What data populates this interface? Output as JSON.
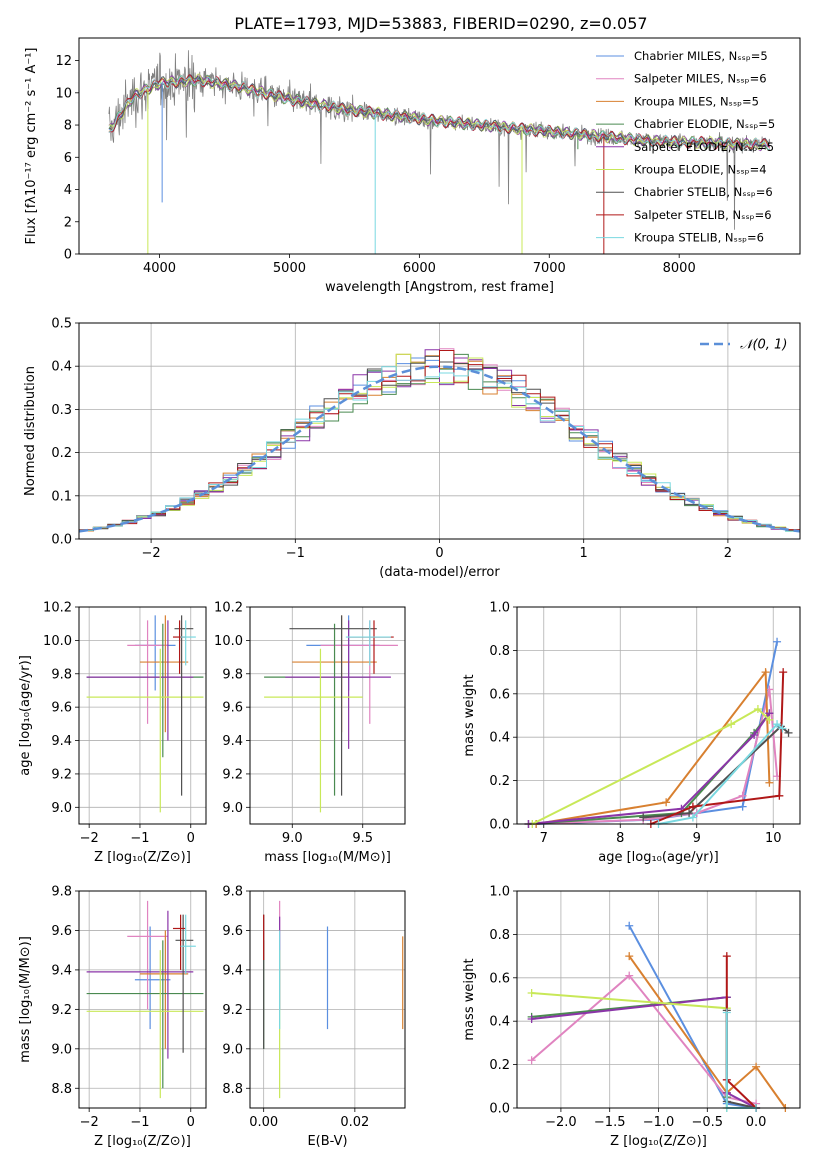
{
  "colors": {
    "cm": "#5b8fe0",
    "sm": "#e084c0",
    "km": "#d88030",
    "ce": "#4a8a50",
    "se": "#8b35a8",
    "ke": "#c8e858",
    "cs": "#505050",
    "ss": "#b01818",
    "ks": "#7ad8e0"
  },
  "chart_data": [
    {
      "id": "spectrum",
      "type": "line",
      "title": "PLATE=1793, MJD=53883, FIBERID=0290, z=0.057",
      "xlabel": "wavelength [Angstrom, rest frame]",
      "ylabel": "Flux [fλ10⁻¹⁷ erg cm⁻² s⁻¹ A⁻¹]",
      "xlim": [
        3380,
        8930
      ],
      "ylim": [
        0,
        13.4
      ],
      "xticks": [
        4000,
        5000,
        6000,
        7000,
        8000
      ],
      "yticks": [
        0,
        2,
        4,
        6,
        8,
        10,
        12
      ],
      "continuum": {
        "x": [
          3600,
          3800,
          4000,
          4300,
          4600,
          5000,
          5400,
          5800,
          6200,
          6600,
          7000,
          7400,
          7800,
          8200,
          8500,
          8700
        ],
        "y": [
          7.5,
          9.8,
          10.6,
          10.8,
          10.4,
          9.6,
          9.0,
          8.6,
          8.2,
          7.9,
          7.6,
          7.3,
          7.0,
          6.9,
          6.8,
          6.8
        ]
      },
      "legend": [
        {
          "name": "Chabrier MILES, Nₛₛₚ=5",
          "color": "cm"
        },
        {
          "name": "Salpeter MILES, Nₛₛₚ=6",
          "color": "sm"
        },
        {
          "name": "Kroupa MILES, Nₛₛₚ=5",
          "color": "km"
        },
        {
          "name": "Chabrier ELODIE, Nₛₛₚ=5",
          "color": "ce"
        },
        {
          "name": "Salpeter ELODIE, Nₛₛₚ=5",
          "color": "se"
        },
        {
          "name": "Kroupa ELODIE, Nₛₛₚ=4",
          "color": "ke"
        },
        {
          "name": "Chabrier STELIB, Nₛₛₚ=6",
          "color": "cs"
        },
        {
          "name": "Salpeter STELIB, Nₛₛₚ=6",
          "color": "ss"
        },
        {
          "name": "Kroupa STELIB, Nₛₛₚ=6",
          "color": "ks"
        }
      ]
    },
    {
      "id": "histogram",
      "type": "line",
      "xlabel": "(data-model)/error",
      "ylabel": "Normed distribution",
      "xlim": [
        -2.5,
        2.5
      ],
      "ylim": [
        0,
        0.5
      ],
      "xticks": [
        -2,
        -1,
        0,
        1,
        2
      ],
      "yticks": [
        0.0,
        0.1,
        0.2,
        0.3,
        0.4,
        0.5
      ],
      "gaussian_legend": "𝒩(0, 1)",
      "bin_width": 0.1
    },
    {
      "id": "age_vs_Z",
      "type": "scatter",
      "xlabel": "Z [log₁₀(Z/Z⊙)]",
      "ylabel": "age  [log₁₀(age/yr)]",
      "xlim": [
        -2.2,
        0.3
      ],
      "ylim": [
        8.9,
        10.2
      ],
      "xticks": [
        -2,
        -1,
        0
      ],
      "yticks": [
        9.0,
        9.2,
        9.4,
        9.6,
        9.8,
        10.0,
        10.2
      ],
      "points": [
        {
          "c": "cm",
          "x": -0.7,
          "y": 9.97,
          "xe": [
            -1.1,
            -0.3
          ],
          "ye": [
            9.7,
            10.15
          ]
        },
        {
          "c": "sm",
          "x": -0.85,
          "y": 9.97,
          "xe": [
            -1.25,
            -0.45
          ],
          "ye": [
            9.5,
            10.12
          ]
        },
        {
          "c": "km",
          "x": -0.5,
          "y": 9.87,
          "xe": [
            -1.0,
            -0.05
          ],
          "ye": [
            9.45,
            10.15
          ]
        },
        {
          "c": "ce",
          "x": -0.55,
          "y": 9.78,
          "xe": [
            -2.05,
            0.25
          ],
          "ye": [
            9.3,
            10.1
          ]
        },
        {
          "c": "se",
          "x": -0.45,
          "y": 9.78,
          "xe": [
            -2.05,
            0.05
          ],
          "ye": [
            9.4,
            10.12
          ]
        },
        {
          "c": "ke",
          "x": -0.6,
          "y": 9.66,
          "xe": [
            -2.05,
            0.25
          ],
          "ye": [
            8.97,
            9.95
          ]
        },
        {
          "c": "cs",
          "x": -0.18,
          "y": 10.07,
          "xe": [
            -0.32,
            0.05
          ],
          "ye": [
            9.07,
            10.15
          ]
        },
        {
          "c": "ss",
          "x": -0.22,
          "y": 10.02,
          "xe": [
            -0.35,
            -0.1
          ],
          "ye": [
            9.8,
            10.12
          ]
        },
        {
          "c": "ks",
          "x": -0.1,
          "y": 10.02,
          "xe": [
            -0.2,
            0.1
          ],
          "ye": [
            9.85,
            10.12
          ]
        }
      ]
    },
    {
      "id": "age_vs_mass",
      "type": "scatter",
      "xlabel": "mass [log₁₀(M/M⊙)]",
      "ylabel": "",
      "xlim": [
        8.7,
        9.8
      ],
      "ylim": [
        8.9,
        10.2
      ],
      "xticks": [
        9.0,
        9.5
      ],
      "yticks": [
        9.0,
        9.2,
        9.4,
        9.6,
        9.8,
        10.0,
        10.2
      ],
      "points": [
        {
          "c": "cm",
          "x": 9.4,
          "y": 9.97,
          "xe": [
            9.1,
            9.62
          ],
          "ye": [
            9.7,
            10.15
          ]
        },
        {
          "c": "sm",
          "x": 9.55,
          "y": 9.97,
          "xe": [
            9.2,
            9.75
          ],
          "ye": [
            9.5,
            10.12
          ]
        },
        {
          "c": "km",
          "x": 9.35,
          "y": 9.87,
          "xe": [
            9.0,
            9.6
          ],
          "ye": [
            9.45,
            10.15
          ]
        },
        {
          "c": "ce",
          "x": 9.3,
          "y": 9.78,
          "xe": [
            8.8,
            9.55
          ],
          "ye": [
            9.07,
            10.1
          ]
        },
        {
          "c": "se",
          "x": 9.4,
          "y": 9.78,
          "xe": [
            8.95,
            9.7
          ],
          "ye": [
            9.35,
            10.12
          ]
        },
        {
          "c": "ke",
          "x": 9.2,
          "y": 9.66,
          "xe": [
            8.8,
            9.5
          ],
          "ye": [
            8.97,
            9.95
          ]
        },
        {
          "c": "cs",
          "x": 9.35,
          "y": 10.07,
          "xe": [
            8.98,
            9.6
          ],
          "ye": [
            9.07,
            10.15
          ]
        },
        {
          "c": "ss",
          "x": 9.58,
          "y": 10.02,
          "xe": [
            9.4,
            9.72
          ],
          "ye": [
            9.8,
            10.12
          ]
        },
        {
          "c": "ks",
          "x": 9.55,
          "y": 10.02,
          "xe": [
            9.38,
            9.7
          ],
          "ye": [
            9.85,
            10.12
          ]
        }
      ]
    },
    {
      "id": "massweight_vs_age",
      "type": "line",
      "xlabel": "age  [log₁₀(age/yr)]",
      "ylabel": "mass weight",
      "xlim": [
        6.65,
        10.35
      ],
      "ylim": [
        0,
        1.0
      ],
      "xticks": [
        7,
        8,
        9,
        10
      ],
      "yticks": [
        0.0,
        0.2,
        0.4,
        0.6,
        0.8,
        1.0
      ],
      "series": [
        {
          "c": "cm",
          "x": [
            6.9,
            8.4,
            9.0,
            9.6,
            10.05
          ],
          "y": [
            0.0,
            0.02,
            0.05,
            0.08,
            0.84
          ]
        },
        {
          "c": "sm",
          "x": [
            6.8,
            8.3,
            9.0,
            9.6,
            9.95,
            10.05
          ],
          "y": [
            0.0,
            0.02,
            0.05,
            0.13,
            0.62,
            0.22
          ]
        },
        {
          "c": "km",
          "x": [
            6.9,
            8.6,
            9.9,
            9.95
          ],
          "y": [
            0.0,
            0.1,
            0.7,
            0.19
          ]
        },
        {
          "c": "ce",
          "x": [
            6.8,
            8.8,
            9.75,
            9.95
          ],
          "y": [
            0.0,
            0.05,
            0.42,
            0.51
          ]
        },
        {
          "c": "se",
          "x": [
            6.8,
            8.8,
            9.75,
            9.95
          ],
          "y": [
            0.0,
            0.07,
            0.41,
            0.51
          ]
        },
        {
          "c": "ke",
          "x": [
            6.85,
            9.45,
            9.8,
            9.95
          ],
          "y": [
            0.0,
            0.46,
            0.53,
            0.48
          ]
        },
        {
          "c": "cs",
          "x": [
            8.3,
            8.9,
            10.1,
            10.2
          ],
          "y": [
            0.03,
            0.05,
            0.45,
            0.42
          ]
        },
        {
          "c": "ss",
          "x": [
            8.4,
            8.95,
            10.08,
            10.13
          ],
          "y": [
            0.0,
            0.08,
            0.13,
            0.7
          ]
        },
        {
          "c": "ks",
          "x": [
            8.5,
            8.95,
            10.05,
            10.12
          ],
          "y": [
            0.0,
            0.03,
            0.46,
            0.44
          ]
        }
      ]
    },
    {
      "id": "mass_vs_Z",
      "type": "scatter",
      "xlabel": "Z [log₁₀(Z/Z⊙)]",
      "ylabel": "mass [log₁₀(M/M⊙)]",
      "xlim": [
        -2.2,
        0.3
      ],
      "ylim": [
        8.7,
        9.8
      ],
      "xticks": [
        -2,
        -1,
        0
      ],
      "yticks": [
        8.8,
        9.0,
        9.2,
        9.4,
        9.6,
        9.8
      ],
      "points": [
        {
          "c": "cm",
          "x": -0.8,
          "y": 9.35,
          "xe": [
            -1.1,
            -0.4
          ],
          "ye": [
            9.1,
            9.62
          ]
        },
        {
          "c": "sm",
          "x": -0.85,
          "y": 9.57,
          "xe": [
            -1.25,
            -0.45
          ],
          "ye": [
            9.2,
            9.75
          ]
        },
        {
          "c": "km",
          "x": -0.5,
          "y": 9.38,
          "xe": [
            -1.0,
            -0.05
          ],
          "ye": [
            9.0,
            9.6
          ]
        },
        {
          "c": "ce",
          "x": -0.55,
          "y": 9.28,
          "xe": [
            -2.05,
            0.25
          ],
          "ye": [
            8.8,
            9.55
          ]
        },
        {
          "c": "se",
          "x": -0.45,
          "y": 9.39,
          "xe": [
            -2.05,
            0.05
          ],
          "ye": [
            8.95,
            9.7
          ]
        },
        {
          "c": "ke",
          "x": -0.6,
          "y": 9.19,
          "xe": [
            -2.05,
            0.25
          ],
          "ye": [
            8.75,
            9.5
          ]
        },
        {
          "c": "cs",
          "x": -0.15,
          "y": 9.55,
          "xe": [
            -0.3,
            0.05
          ],
          "ye": [
            8.98,
            9.68
          ]
        },
        {
          "c": "ss",
          "x": -0.2,
          "y": 9.61,
          "xe": [
            -0.35,
            -0.1
          ],
          "ye": [
            9.4,
            9.68
          ]
        },
        {
          "c": "ks",
          "x": -0.1,
          "y": 9.52,
          "xe": [
            -0.2,
            0.1
          ],
          "ye": [
            9.38,
            9.68
          ]
        }
      ]
    },
    {
      "id": "mass_vs_ebv",
      "type": "scatter",
      "xlabel": "E(B-V)",
      "ylabel": "",
      "xlim": [
        -0.003,
        0.031
      ],
      "ylim": [
        8.7,
        9.8
      ],
      "xticks": [
        0.0,
        0.02
      ],
      "yticks": [
        8.8,
        9.0,
        9.2,
        9.4,
        9.6,
        9.8
      ],
      "points": [
        {
          "c": "cm",
          "x": 0.014,
          "y": 9.35,
          "xe": [
            0.014,
            0.014
          ],
          "ye": [
            9.1,
            9.62
          ]
        },
        {
          "c": "sm",
          "x": 0.0035,
          "y": 9.57,
          "xe": [
            0.0035,
            0.0035
          ],
          "ye": [
            9.2,
            9.75
          ]
        },
        {
          "c": "km",
          "x": 0.0305,
          "y": 9.38,
          "xe": [
            0.0305,
            0.0305
          ],
          "ye": [
            9.1,
            9.57
          ]
        },
        {
          "c": "ce",
          "x": 0.0,
          "y": 9.28,
          "xe": [
            0.0,
            0.0
          ],
          "ye": [
            9.0,
            9.55
          ]
        },
        {
          "c": "se",
          "x": 0.0035,
          "y": 9.39,
          "xe": [
            0.0035,
            0.0035
          ],
          "ye": [
            9.2,
            9.67
          ]
        },
        {
          "c": "ke",
          "x": 0.0035,
          "y": 9.19,
          "xe": [
            0.0035,
            0.0035
          ],
          "ye": [
            8.75,
            9.5
          ]
        },
        {
          "c": "cs",
          "x": 0.0,
          "y": 9.55,
          "xe": [
            0.0,
            0.0
          ],
          "ye": [
            9.0,
            9.68
          ]
        },
        {
          "c": "ss",
          "x": 0.0,
          "y": 9.61,
          "xe": [
            0.0,
            0.0
          ],
          "ye": [
            9.45,
            9.68
          ]
        },
        {
          "c": "ks",
          "x": 0.0035,
          "y": 9.52,
          "xe": [
            0.0035,
            0.0035
          ],
          "ye": [
            9.1,
            9.6
          ]
        }
      ]
    },
    {
      "id": "massweight_vs_Z",
      "type": "line",
      "xlabel": "Z [log₁₀(Z/Z⊙)]",
      "ylabel": "mass weight",
      "xlim": [
        -2.45,
        0.45
      ],
      "ylim": [
        0,
        1.0
      ],
      "xticks": [
        -2.0,
        -1.5,
        -1.0,
        -0.5,
        0.0
      ],
      "yticks": [
        0.0,
        0.2,
        0.4,
        0.6,
        0.8,
        1.0
      ],
      "series": [
        {
          "c": "cm",
          "x": [
            -1.3,
            -0.3,
            0.0
          ],
          "y": [
            0.84,
            0.02,
            0.0
          ]
        },
        {
          "c": "sm",
          "x": [
            -2.3,
            -1.3,
            -0.3,
            0.0
          ],
          "y": [
            0.22,
            0.61,
            0.05,
            0.02
          ]
        },
        {
          "c": "km",
          "x": [
            -1.3,
            -0.3,
            0.0,
            0.3
          ],
          "y": [
            0.7,
            0.07,
            0.19,
            0.0
          ]
        },
        {
          "c": "ce",
          "x": [
            -2.3,
            -0.3,
            -0.3
          ],
          "y": [
            0.42,
            0.51,
            0.05
          ]
        },
        {
          "c": "se",
          "x": [
            -2.3,
            -0.3,
            -0.3,
            0.0
          ],
          "y": [
            0.41,
            0.51,
            0.07,
            0.0
          ]
        },
        {
          "c": "ke",
          "x": [
            -2.3,
            -0.3,
            -0.3
          ],
          "y": [
            0.53,
            0.46,
            0.0
          ]
        },
        {
          "c": "cs",
          "x": [
            -0.3,
            -0.3,
            0.0
          ],
          "y": [
            0.45,
            0.03,
            0.0
          ]
        },
        {
          "c": "ss",
          "x": [
            -0.3,
            -0.3,
            0.0
          ],
          "y": [
            0.7,
            0.13,
            0.0
          ]
        },
        {
          "c": "ks",
          "x": [
            -0.3,
            -0.3,
            0.0
          ],
          "y": [
            0.44,
            0.0,
            0.0
          ]
        }
      ]
    }
  ]
}
